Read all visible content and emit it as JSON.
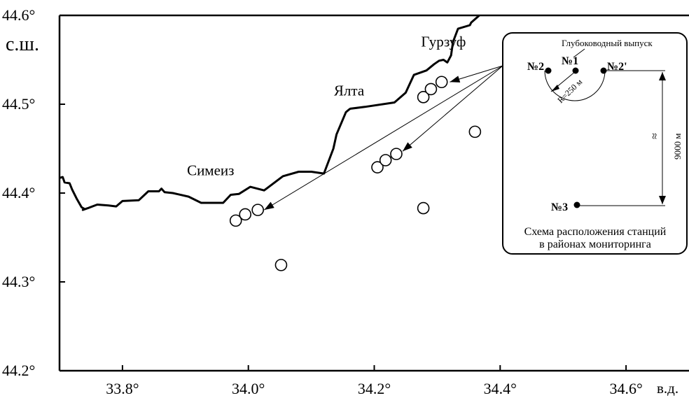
{
  "chart_data": {
    "type": "map",
    "x_ticks": [
      33.8,
      34.0,
      34.2,
      34.4,
      34.6
    ],
    "y_ticks": [
      44.2,
      44.3,
      44.4,
      44.5,
      44.6
    ],
    "x_labels": [
      "33.8°",
      "34.0°",
      "34.2°",
      "34.4°",
      "34.6°"
    ],
    "y_labels": [
      "44.2°",
      "44.3°",
      "44.4°",
      "44.5°",
      "44.6°"
    ],
    "x_unit": "в.д.",
    "y_unit": "с.ш.",
    "xlim": [
      33.7,
      34.7
    ],
    "ylim": [
      44.2,
      44.6
    ],
    "places": [
      {
        "name": "Гурзуф",
        "lon": 34.31,
        "lat": 44.565
      },
      {
        "name": "Ялта",
        "lon": 34.16,
        "lat": 44.51
      },
      {
        "name": "Симеиз",
        "lon": 33.94,
        "lat": 44.42
      }
    ],
    "stations": [
      {
        "lon": 33.98,
        "lat": 44.369
      },
      {
        "lon": 33.995,
        "lat": 44.376
      },
      {
        "lon": 34.015,
        "lat": 44.381
      },
      {
        "lon": 34.052,
        "lat": 44.319
      },
      {
        "lon": 34.205,
        "lat": 44.429
      },
      {
        "lon": 34.218,
        "lat": 44.437
      },
      {
        "lon": 34.235,
        "lat": 44.444
      },
      {
        "lon": 34.278,
        "lat": 44.383
      },
      {
        "lon": 34.278,
        "lat": 44.508
      },
      {
        "lon": 34.29,
        "lat": 44.517
      },
      {
        "lon": 34.307,
        "lat": 44.525
      },
      {
        "lon": 34.36,
        "lat": 44.469
      }
    ],
    "coastline": [
      [
        33.7,
        44.417
      ],
      [
        33.705,
        44.418
      ],
      [
        33.708,
        44.412
      ],
      [
        33.716,
        44.411
      ],
      [
        33.72,
        44.404
      ],
      [
        33.727,
        44.394
      ],
      [
        33.735,
        44.384
      ],
      [
        33.74,
        44.382
      ],
      [
        33.737,
        44.381
      ],
      [
        33.745,
        44.383
      ],
      [
        33.76,
        44.387
      ],
      [
        33.778,
        44.386
      ],
      [
        33.79,
        44.385
      ],
      [
        33.8,
        44.391
      ],
      [
        33.826,
        44.392
      ],
      [
        33.841,
        44.402
      ],
      [
        33.858,
        44.402
      ],
      [
        33.862,
        44.405
      ],
      [
        33.867,
        44.401
      ],
      [
        33.88,
        44.4
      ],
      [
        33.905,
        44.396
      ],
      [
        33.925,
        44.389
      ],
      [
        33.945,
        44.389
      ],
      [
        33.96,
        44.389
      ],
      [
        33.972,
        44.398
      ],
      [
        33.985,
        44.399
      ],
      [
        34.003,
        44.407
      ],
      [
        34.025,
        44.403
      ],
      [
        34.055,
        44.419
      ],
      [
        34.08,
        44.424
      ],
      [
        34.1,
        44.424
      ],
      [
        34.12,
        44.422
      ],
      [
        34.135,
        44.45
      ],
      [
        34.14,
        44.466
      ],
      [
        34.155,
        44.491
      ],
      [
        34.16,
        44.494
      ],
      [
        34.162,
        44.495
      ],
      [
        34.185,
        44.497
      ],
      [
        34.232,
        44.502
      ],
      [
        34.25,
        44.513
      ],
      [
        34.263,
        44.533
      ],
      [
        34.283,
        44.538
      ],
      [
        34.295,
        44.545
      ],
      [
        34.303,
        44.549
      ],
      [
        34.31,
        44.55
      ],
      [
        34.316,
        44.547
      ],
      [
        34.322,
        44.555
      ],
      [
        34.325,
        44.57
      ],
      [
        34.333,
        44.585
      ],
      [
        34.352,
        44.589
      ],
      [
        34.354,
        44.592
      ],
      [
        34.367,
        44.6
      ]
    ],
    "arrows": [
      {
        "to_lon": 34.32,
        "to_lat": 44.525
      },
      {
        "to_lon": 34.245,
        "to_lat": 44.447
      },
      {
        "to_lon": 34.025,
        "to_lat": 44.381
      }
    ]
  },
  "inset": {
    "title": "Глубоководный выпуск",
    "st1": "№1",
    "st2": "№2",
    "st2p": "№2'",
    "st3": "№3",
    "radius": "R=250 м",
    "distance": "9000 м",
    "approx": "≈",
    "caption_line1": "Схема расположения станций",
    "caption_line2": "в районах мониторинга"
  },
  "colors": {
    "ink": "#000000",
    "background": "#ffffff"
  }
}
